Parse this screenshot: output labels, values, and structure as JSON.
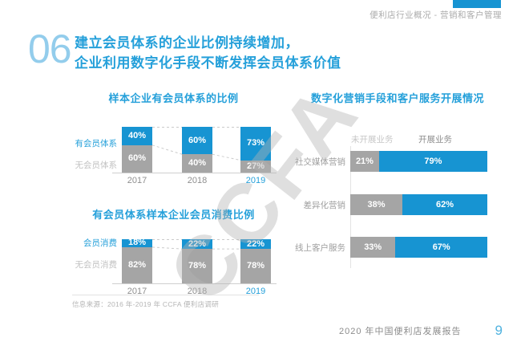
{
  "page": {
    "breadcrumb": "便利店行业概况 - 营销和客户管理",
    "section_number": "06",
    "title_line1": "建立会员体系的企业比例持续增加，",
    "title_line2": "企业利用数字化手段不断发挥会员体系价值",
    "watermark": "CCFA",
    "source_note": "信息来源：2016 年-2019 年 CCFA 便利店调研",
    "footer_title": "2020 年中国便利店发展报告",
    "page_number": "9"
  },
  "colors": {
    "accent_blue": "#1794D2",
    "title_blue": "#25A0DA",
    "bar_gray": "#A5A5A5",
    "light_label_gray": "#C2C2C2",
    "axis_gray": "#CFCFCF",
    "year_gray": "#8F8F8F",
    "watermark_gray": "#B2B2B2"
  },
  "chart_data": [
    {
      "type": "bar",
      "stacked": true,
      "orientation": "vertical",
      "title": "样本企业有会员体系的比例",
      "categories": [
        "2017",
        "2018",
        "2019"
      ],
      "series": [
        {
          "name": "有会员体系",
          "color": "#1794D2",
          "label_color": "#25A0DA",
          "values": [
            40,
            60,
            73
          ]
        },
        {
          "name": "无会员体系",
          "color": "#A5A5A5",
          "label_color": "#C2C2C2",
          "values": [
            60,
            40,
            27
          ]
        }
      ],
      "value_suffix": "%",
      "ylim": [
        0,
        100
      ],
      "grid": false,
      "connector_lines": "dashed"
    },
    {
      "type": "bar",
      "stacked": true,
      "orientation": "vertical",
      "title": "有会员体系样本企业会员消费比例",
      "categories": [
        "2017",
        "2018",
        "2019"
      ],
      "series": [
        {
          "name": "会员消费",
          "color": "#1794D2",
          "label_color": "#25A0DA",
          "values": [
            18,
            22,
            22
          ]
        },
        {
          "name": "无会员消费",
          "color": "#A5A5A5",
          "label_color": "#C2C2C2",
          "values": [
            82,
            78,
            78
          ]
        }
      ],
      "value_suffix": "%",
      "ylim": [
        0,
        100
      ],
      "grid": false,
      "connector_lines": "dashed"
    },
    {
      "type": "bar",
      "stacked": true,
      "orientation": "horizontal",
      "title": "数字化营销手段和客户服务开展情况",
      "categories": [
        "社交媒体营销",
        "差异化营销",
        "线上客户服务"
      ],
      "series": [
        {
          "name": "未开展业务",
          "color": "#A5A5A5",
          "values": [
            21,
            38,
            33
          ]
        },
        {
          "name": "开展业务",
          "color": "#1794D2",
          "values": [
            79,
            62,
            67
          ]
        }
      ],
      "value_suffix": "%",
      "xlim": [
        0,
        100
      ],
      "grid": false,
      "legend_position": "top"
    }
  ]
}
